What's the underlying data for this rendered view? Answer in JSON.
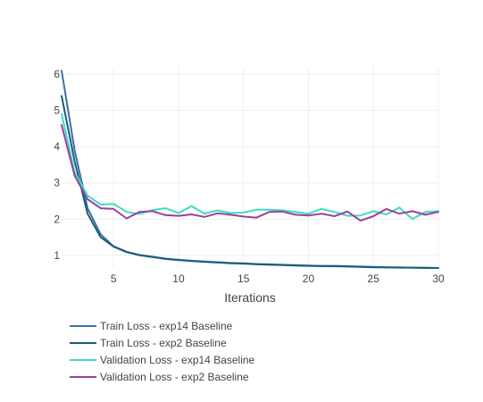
{
  "chart_data": {
    "type": "line",
    "xlabel": "Iterations",
    "ylabel": "",
    "xlim": [
      1,
      30
    ],
    "ylim": [
      0.65,
      6.2
    ],
    "x_ticks": [
      5,
      10,
      15,
      20,
      25,
      30
    ],
    "y_ticks": [
      1,
      2,
      3,
      4,
      5,
      6
    ],
    "grid": true,
    "legend_position": "bottom-left",
    "x": [
      1,
      2,
      3,
      4,
      5,
      6,
      7,
      8,
      9,
      10,
      11,
      12,
      13,
      14,
      15,
      16,
      17,
      18,
      19,
      20,
      21,
      22,
      23,
      24,
      25,
      26,
      27,
      28,
      29,
      30
    ],
    "series": [
      {
        "name": "Train Loss - exp14 Baseline",
        "color": "#3f6fa3",
        "values": [
          6.1,
          3.9,
          2.3,
          1.58,
          1.25,
          1.1,
          1.01,
          0.96,
          0.91,
          0.88,
          0.85,
          0.83,
          0.81,
          0.79,
          0.78,
          0.76,
          0.75,
          0.74,
          0.73,
          0.72,
          0.71,
          0.71,
          0.7,
          0.69,
          0.68,
          0.67,
          0.67,
          0.66,
          0.66,
          0.65
        ]
      },
      {
        "name": "Train Loss - exp2 Baseline",
        "color": "#17607a",
        "values": [
          5.4,
          3.6,
          2.15,
          1.5,
          1.24,
          1.09,
          1.0,
          0.95,
          0.9,
          0.87,
          0.84,
          0.82,
          0.8,
          0.78,
          0.77,
          0.75,
          0.74,
          0.73,
          0.72,
          0.71,
          0.7,
          0.7,
          0.69,
          0.68,
          0.67,
          0.67,
          0.66,
          0.66,
          0.65,
          0.65
        ]
      },
      {
        "name": "Validation Loss - exp14 Baseline",
        "color": "#3ddcc4",
        "values": [
          4.9,
          3.3,
          2.65,
          2.4,
          2.42,
          2.2,
          2.14,
          2.25,
          2.3,
          2.17,
          2.36,
          2.15,
          2.24,
          2.17,
          2.18,
          2.26,
          2.26,
          2.24,
          2.2,
          2.15,
          2.28,
          2.2,
          2.09,
          2.1,
          2.22,
          2.13,
          2.32,
          2.0,
          2.2,
          2.22
        ]
      },
      {
        "name": "Validation Loss - exp2 Baseline",
        "color": "#9c3f9e",
        "values": [
          4.6,
          3.2,
          2.55,
          2.3,
          2.28,
          2.02,
          2.2,
          2.22,
          2.11,
          2.09,
          2.13,
          2.06,
          2.16,
          2.12,
          2.07,
          2.04,
          2.2,
          2.21,
          2.12,
          2.1,
          2.15,
          2.08,
          2.21,
          1.96,
          2.08,
          2.28,
          2.15,
          2.22,
          2.12,
          2.2
        ]
      }
    ]
  }
}
